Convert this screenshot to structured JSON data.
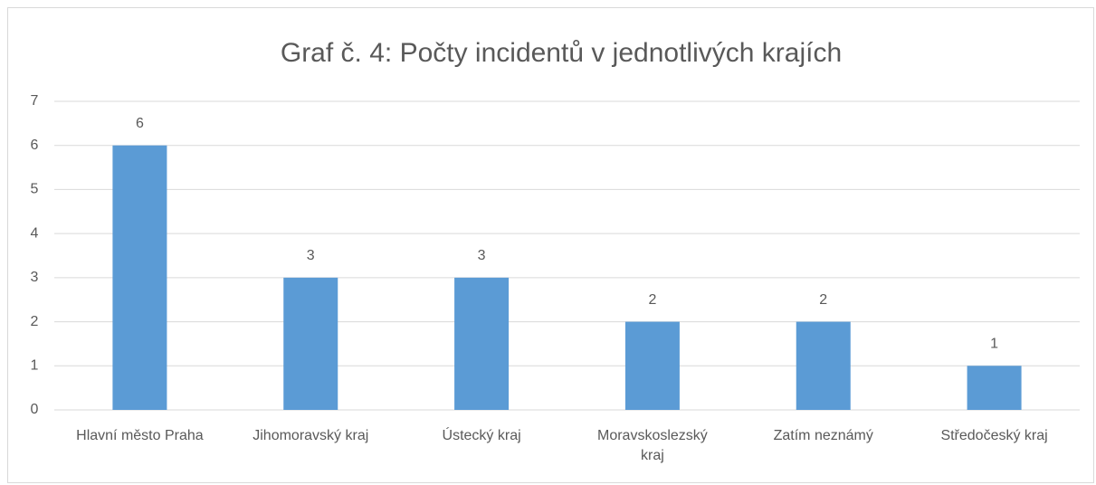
{
  "chart_data": {
    "type": "bar",
    "title": "Graf č. 4: Počty incidentů v jednotlivých krajích",
    "categories": [
      "Hlavní město Praha",
      "Jihomoravský kraj",
      "Ústecký kraj",
      "Moravskoslezský kraj",
      "Zatím neznámý",
      "Středočeský kraj"
    ],
    "values": [
      6,
      3,
      3,
      2,
      2,
      1
    ],
    "color": "#5b9bd5",
    "ylim": [
      0,
      7
    ],
    "yticks": [
      0,
      1,
      2,
      3,
      4,
      5,
      6,
      7
    ],
    "grid": true,
    "data_labels": true
  }
}
